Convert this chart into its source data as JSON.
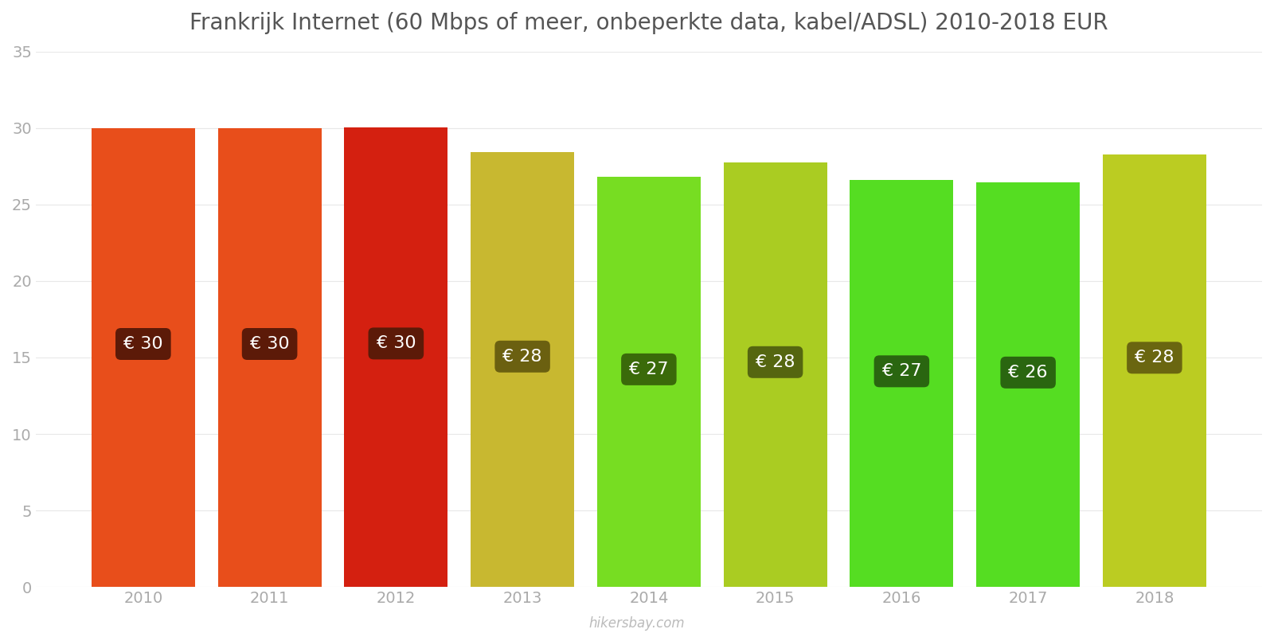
{
  "title": "Frankrijk Internet (60 Mbps of meer, onbeperkte data, kabel/ADSL) 2010-2018 EUR",
  "years": [
    2010,
    2011,
    2012,
    2013,
    2014,
    2015,
    2016,
    2017,
    2018
  ],
  "values": [
    29.97,
    29.97,
    30.03,
    28.42,
    26.84,
    27.73,
    26.6,
    26.45,
    28.27
  ],
  "labels": [
    "€ 30",
    "€ 30",
    "€ 30",
    "€ 28",
    "€ 27",
    "€ 28",
    "€ 27",
    "€ 26",
    "€ 28"
  ],
  "bar_colors": [
    "#E84E1B",
    "#E84E1B",
    "#D42010",
    "#C8B830",
    "#77DD22",
    "#AACC22",
    "#55DD22",
    "#55DD22",
    "#BBCC22"
  ],
  "label_bg_colors": [
    "#5C1A08",
    "#5C1A08",
    "#5C1A08",
    "#6B6010",
    "#3A6A0A",
    "#556610",
    "#2A6610",
    "#2A6610",
    "#6A6610"
  ],
  "label_text_color": "#FFFFFF",
  "ylim": [
    0,
    35
  ],
  "yticks": [
    0,
    5,
    10,
    15,
    20,
    25,
    30,
    35
  ],
  "background_color": "#FFFFFF",
  "grid_color": "#E8E8E8",
  "title_fontsize": 20,
  "tick_fontsize": 14,
  "label_fontsize": 16,
  "watermark": "hikersbay.com",
  "bar_width": 0.82
}
